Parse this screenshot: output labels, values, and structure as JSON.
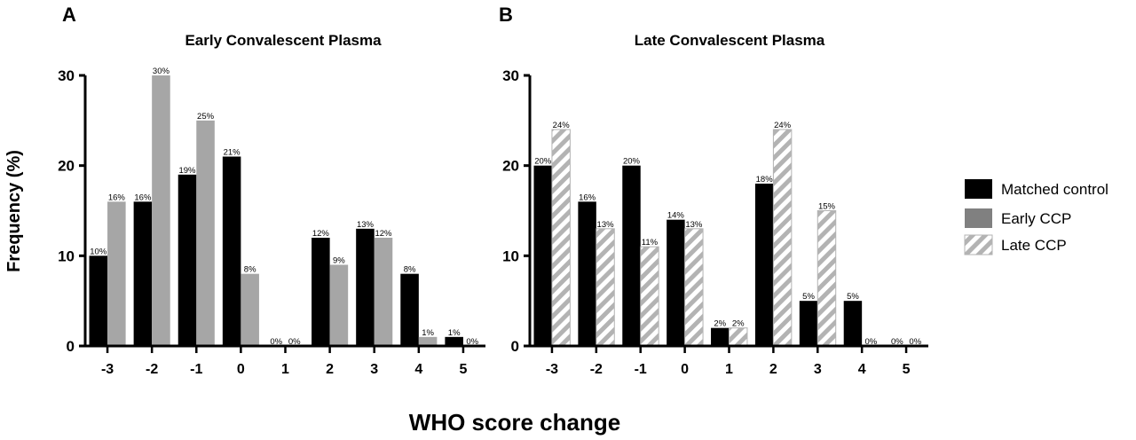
{
  "shared": {
    "ylabel": "Frequency (%)",
    "xlabel": "WHO score change"
  },
  "legend": {
    "entries": [
      {
        "name": "Matched control",
        "style": "black"
      },
      {
        "name": "Early CCP",
        "style": "grey"
      },
      {
        "name": "Late CCP",
        "style": "hatched"
      }
    ]
  },
  "colors": {
    "matched": "#000000",
    "early": "#a6a6a6",
    "early_legend": "#808080",
    "hatch_stripe": "#b3b3b3"
  },
  "chart_data": [
    {
      "panel": "A",
      "title": "Early Convalescent Plasma",
      "type": "bar",
      "categories": [
        "-3",
        "-2",
        "-1",
        "0",
        "1",
        "2",
        "3",
        "4",
        "5"
      ],
      "ylim": [
        0,
        30
      ],
      "yticks": [
        "0",
        "10",
        "20",
        "30"
      ],
      "series": [
        {
          "name": "Matched control",
          "style": "black",
          "values": [
            10,
            16,
            19,
            21,
            0,
            12,
            13,
            8,
            1
          ],
          "labels": [
            "10%",
            "16%",
            "19%",
            "21%",
            "0%",
            "12%",
            "13%",
            "8%",
            "1%"
          ]
        },
        {
          "name": "Early CCP",
          "style": "grey",
          "values": [
            16,
            30,
            25,
            8,
            0,
            9,
            12,
            1,
            0
          ],
          "labels": [
            "16%",
            "30%",
            "25%",
            "8%",
            "0%",
            "9%",
            "12%",
            "1%",
            "0%"
          ]
        }
      ]
    },
    {
      "panel": "B",
      "title": "Late Convalescent Plasma",
      "type": "bar",
      "categories": [
        "-3",
        "-2",
        "-1",
        "0",
        "1",
        "2",
        "3",
        "4",
        "5"
      ],
      "ylim": [
        0,
        30
      ],
      "yticks": [
        "0",
        "10",
        "20",
        "30"
      ],
      "series": [
        {
          "name": "Matched control",
          "style": "black",
          "values": [
            20,
            16,
            20,
            14,
            2,
            18,
            5,
            5,
            0
          ],
          "labels": [
            "20%",
            "16%",
            "20%",
            "14%",
            "2%",
            "18%",
            "5%",
            "5%",
            "0%"
          ]
        },
        {
          "name": "Late CCP",
          "style": "hatched",
          "values": [
            24,
            13,
            11,
            13,
            2,
            24,
            15,
            0,
            0
          ],
          "labels": [
            "24%",
            "13%",
            "11%",
            "13%",
            "2%",
            "24%",
            "15%",
            "0%",
            "0%"
          ]
        }
      ]
    }
  ]
}
